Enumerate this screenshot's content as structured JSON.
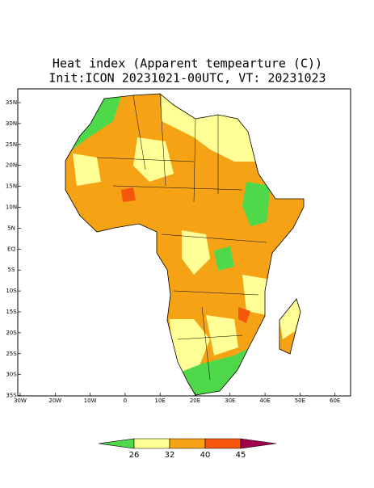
{
  "title": "Heat index (Apparent tempearture (C))",
  "subtitle": "Init:ICON 20231021-00UTC, VT: 20231023",
  "lat_labels": [
    "35N",
    "30N",
    "25N",
    "20N",
    "15N",
    "10N",
    "5N",
    "EQ",
    "5S",
    "10S",
    "15S",
    "20S",
    "25S",
    "30S",
    "35S"
  ],
  "lon_labels": [
    "30W",
    "20W",
    "10W",
    "0",
    "10E",
    "20E",
    "30E",
    "40E",
    "50E",
    "60E"
  ],
  "legend": {
    "labels": [
      "26",
      "32",
      "40",
      "45"
    ],
    "colors": [
      "#4fd84a",
      "#ffff96",
      "#f5a314",
      "#f5560c",
      "#a0004c"
    ]
  }
}
